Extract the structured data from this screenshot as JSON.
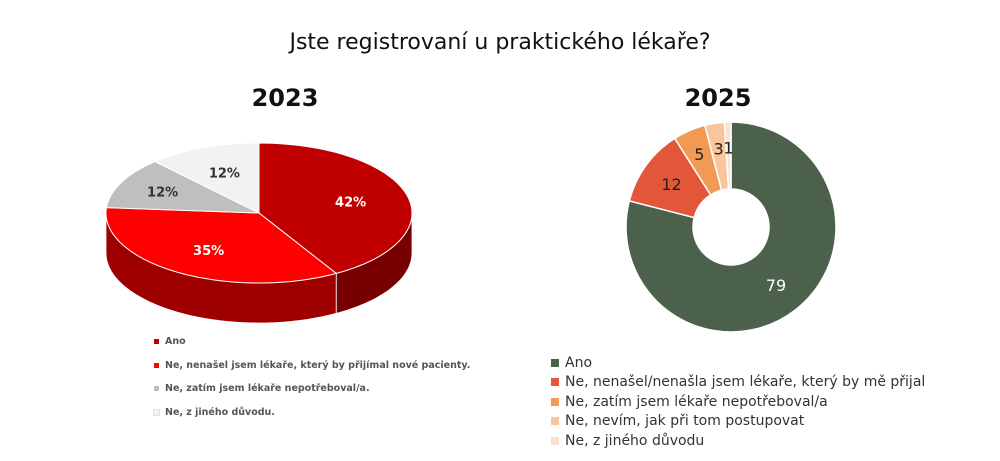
{
  "title": "Jste registrovaní u praktického lékaře?",
  "chart_data": [
    {
      "type": "pie",
      "title": "2023",
      "unit": "%",
      "labels": [
        "Ano",
        "Ne, nenašel jsem lékaře, který by přijímal nové pacienty.",
        "Ne, zatím jsem lékaře nepotřeboval/a.",
        "Ne, z jiného důvodu."
      ],
      "values": [
        42,
        35,
        12,
        12
      ],
      "value_labels": [
        "42%",
        "35%",
        "12%",
        "12%"
      ],
      "colors": [
        "#c00000",
        "#ff0000",
        "#bfbfbf",
        "#f2f2f2"
      ],
      "style": "3d",
      "legend_position": "bottom"
    },
    {
      "type": "pie",
      "subtype": "donut",
      "title": "2025",
      "labels": [
        "Ano",
        "Ne, nenašel/nenašla jsem lékaře, který by mě přijal",
        "Ne, zatím jsem lékaře nepotřeboval/a",
        "Ne, nevím, jak při tom postupovat",
        "Ne, z jiného důvodu"
      ],
      "values": [
        79,
        12,
        5,
        3,
        1
      ],
      "value_labels": [
        "79",
        "12",
        "5",
        "3",
        "1"
      ],
      "colors": [
        "#4b614b",
        "#e2563a",
        "#f19a55",
        "#f8c59c",
        "#fbe2d0"
      ],
      "legend_position": "bottom"
    }
  ]
}
